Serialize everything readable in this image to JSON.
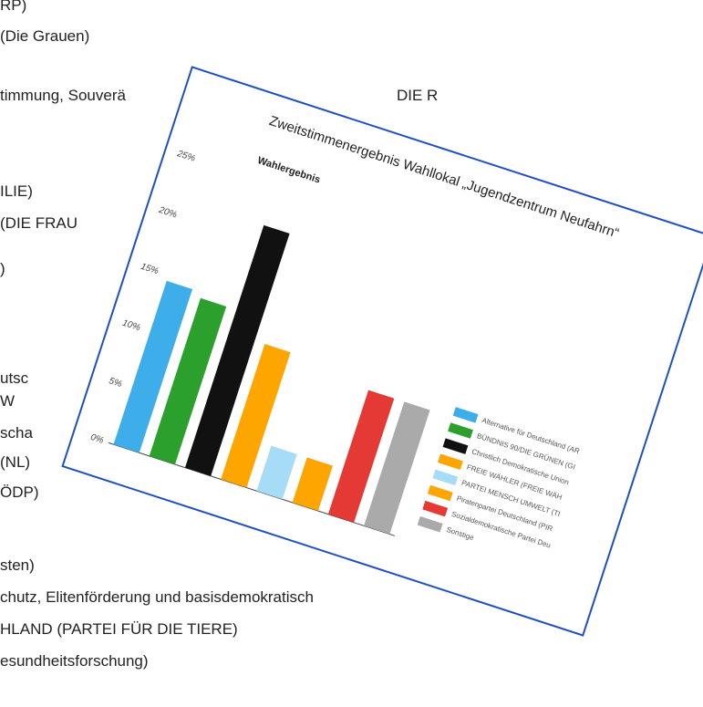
{
  "background_lines": [
    "RP)",
    "(Die Grauen)",
    "timmung, Souverä",
    "DIE R",
    "ILIE)",
    "(DIE FRAU",
    ")",
    "utsc",
    "W",
    "scha",
    "(NL)",
    "ÖDP)",
    "sten)",
    "chutz, Elitenförderung und basisdemokratisch",
    "HLAND (PARTEI FÜR DIE TIERE)",
    "esundheitsforschung)"
  ],
  "chart_data": {
    "type": "bar",
    "title": "Zweitstimmenergebnis Wahllokal „Jugendzentrum Neufahrn“",
    "subtitle": "Wahlergebnis",
    "categories": [
      "Alternative für Deutschland (AR",
      "BÜNDNIS 90/DIE GRÜNEN (GI",
      "Christlich Demokratische Union",
      "FREIE WÄHLER (FREIE WÄH",
      "PARTEI MENSCH UMWELT (TI",
      "Piratenpartei Deutschland (PIR",
      "Sozialdemokratische Partei Deu",
      "Sonstige"
    ],
    "values": [
      14.5,
      14,
      21.5,
      12,
      4,
      4,
      11,
      11
    ],
    "colors": [
      "#3daee9",
      "#2ca02c",
      "#111111",
      "#ffa500",
      "#a6dcf5",
      "#ffa500",
      "#e53935",
      "#aaaaaa"
    ],
    "ylim": [
      0,
      25
    ],
    "yticks": [
      {
        "value": 0,
        "label": "0%"
      },
      {
        "value": 5,
        "label": "5%"
      },
      {
        "value": 10,
        "label": "10%"
      },
      {
        "value": 15,
        "label": "15%"
      },
      {
        "value": 20,
        "label": "20%"
      },
      {
        "value": 25,
        "label": "25%"
      }
    ],
    "grid": false
  }
}
